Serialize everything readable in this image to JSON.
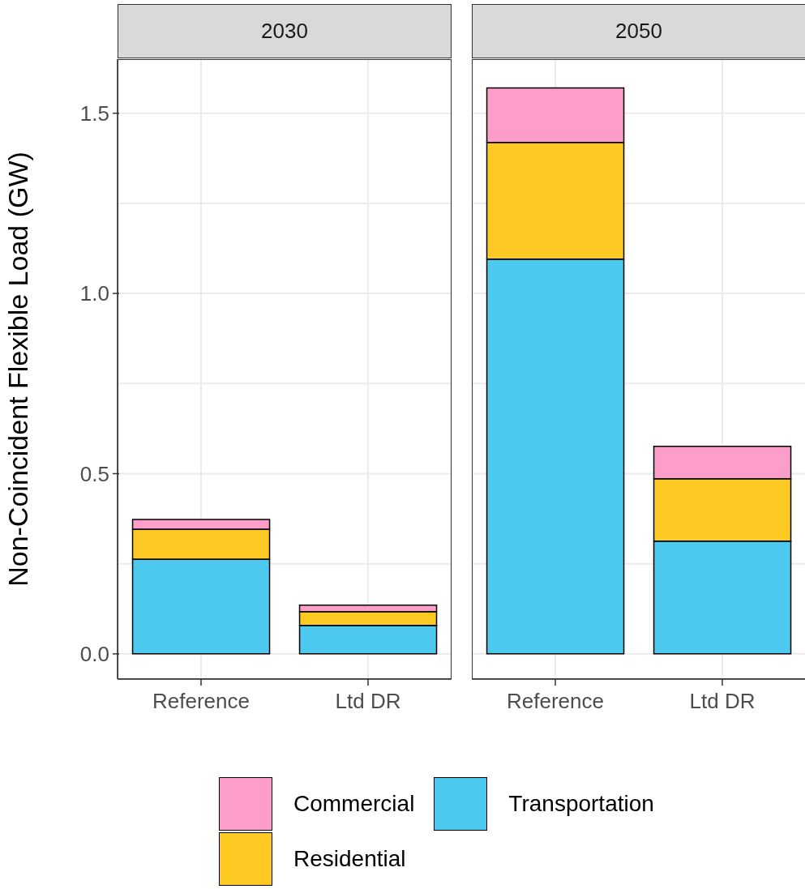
{
  "chart_data": [
    {
      "type": "bar",
      "title": "2030",
      "ylabel": "Non-Coincident Flexible Load (GW)",
      "categories": [
        "Reference",
        "Ltd DR"
      ],
      "stacked": true,
      "grid": true,
      "legend": "bottom",
      "ylim": [
        -0.07,
        1.65
      ],
      "yticks": [
        {
          "value": 0,
          "label": "0.0"
        },
        {
          "value": 0.25,
          "label": null
        },
        {
          "value": 0.5,
          "label": "0.5"
        },
        {
          "value": 0.75,
          "label": null
        },
        {
          "value": 1,
          "label": "1.0"
        },
        {
          "value": 1.25,
          "label": null
        },
        {
          "value": 1.5,
          "label": "1.5"
        }
      ],
      "series": [
        {
          "name": "Transportation",
          "color": "#4dc9f0",
          "values": [
            0.263,
            0.079
          ]
        },
        {
          "name": "Residential",
          "color": "#fdc922",
          "values": [
            0.083,
            0.038
          ]
        },
        {
          "name": "Commercial",
          "color": "#fc9dca",
          "values": [
            0.027,
            0.018
          ]
        }
      ]
    },
    {
      "type": "bar",
      "title": "2050",
      "categories": [
        "Reference",
        "Ltd DR"
      ],
      "stacked": true,
      "grid": true,
      "tick_labels": "x",
      "ylim": [
        -0.07,
        1.65
      ],
      "yticks": [
        0,
        0.25,
        0.5,
        0.75,
        1,
        1.25,
        1.5
      ],
      "series": [
        {
          "color": "#4dc9f0",
          "values": [
            1.095,
            0.313
          ]
        },
        {
          "color": "#fdc922",
          "values": [
            0.324,
            0.173
          ]
        },
        {
          "color": "#fc9dca",
          "values": [
            0.151,
            0.09
          ]
        }
      ]
    }
  ]
}
